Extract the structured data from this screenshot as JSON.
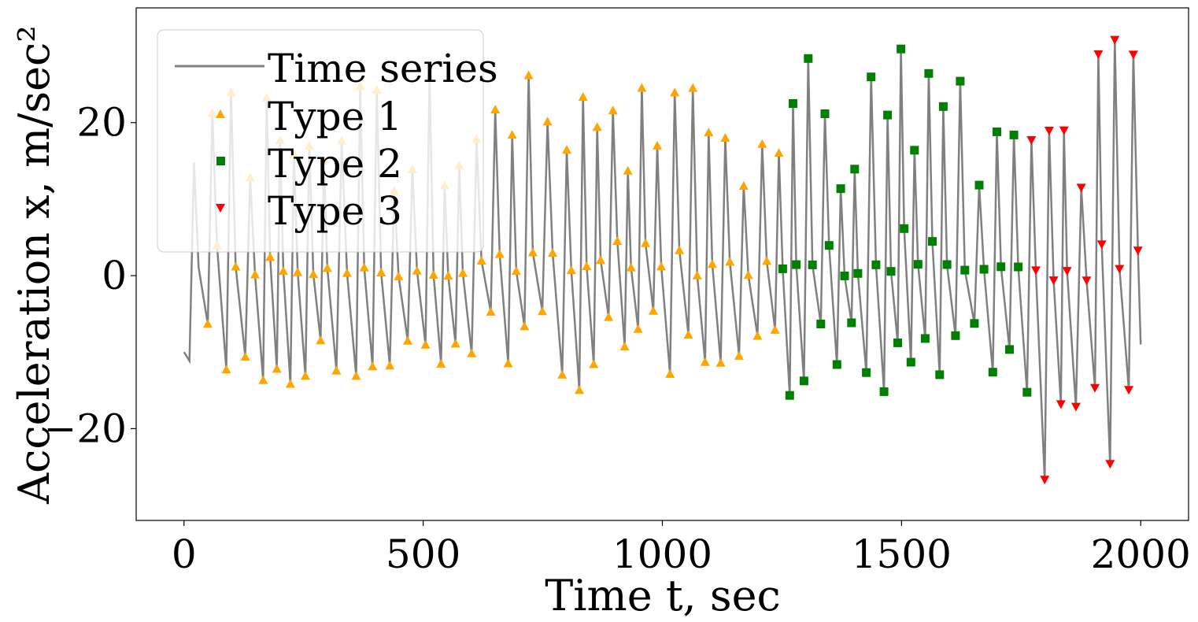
{
  "chart_data": {
    "type": "line",
    "xlabel": "Time t, sec",
    "ylabel": "Acceleration x, m/sec²",
    "xlim": [
      -100,
      2100
    ],
    "ylim": [
      -32,
      35
    ],
    "x_ticks": [
      0,
      500,
      1000,
      1500,
      2000
    ],
    "x_tick_labels": [
      "0",
      "500",
      "1000",
      "1500",
      "2000"
    ],
    "y_ticks": [
      -20,
      0,
      20
    ],
    "y_tick_labels": [
      "−20",
      "0",
      "20"
    ],
    "grid": false,
    "legend_placement": "top-left",
    "colors": {
      "line": "#808080",
      "type1": "#FFA500",
      "type2": "#008000",
      "type3": "#FF0000"
    },
    "series": [
      {
        "name": "Time series",
        "kind": "line",
        "envelope_note": "oscillating signal from t=0 to t=2000",
        "segments": [
          {
            "t_start": 0,
            "t_end": 1250,
            "min": -15,
            "max": 27
          },
          {
            "t_start": 1250,
            "t_end": 1770,
            "min": -16,
            "max": 32
          },
          {
            "t_start": 1770,
            "t_end": 2000,
            "min": -29,
            "max": 31
          }
        ]
      },
      {
        "name": "Type 1",
        "kind": "scatter",
        "marker": "triangle-up",
        "t_range": [
          40,
          1250
        ],
        "y_range": [
          -15,
          27
        ]
      },
      {
        "name": "Type 2",
        "kind": "scatter",
        "marker": "square",
        "t_range": [
          1250,
          1770
        ],
        "y_range": [
          -16,
          32
        ]
      },
      {
        "name": "Type 3",
        "kind": "scatter",
        "marker": "triangle-down",
        "t_range": [
          1770,
          2000
        ],
        "y_range": [
          -29,
          31
        ]
      }
    ],
    "legend": [
      "Time series",
      "Type 1",
      "Type 2",
      "Type 3"
    ]
  }
}
